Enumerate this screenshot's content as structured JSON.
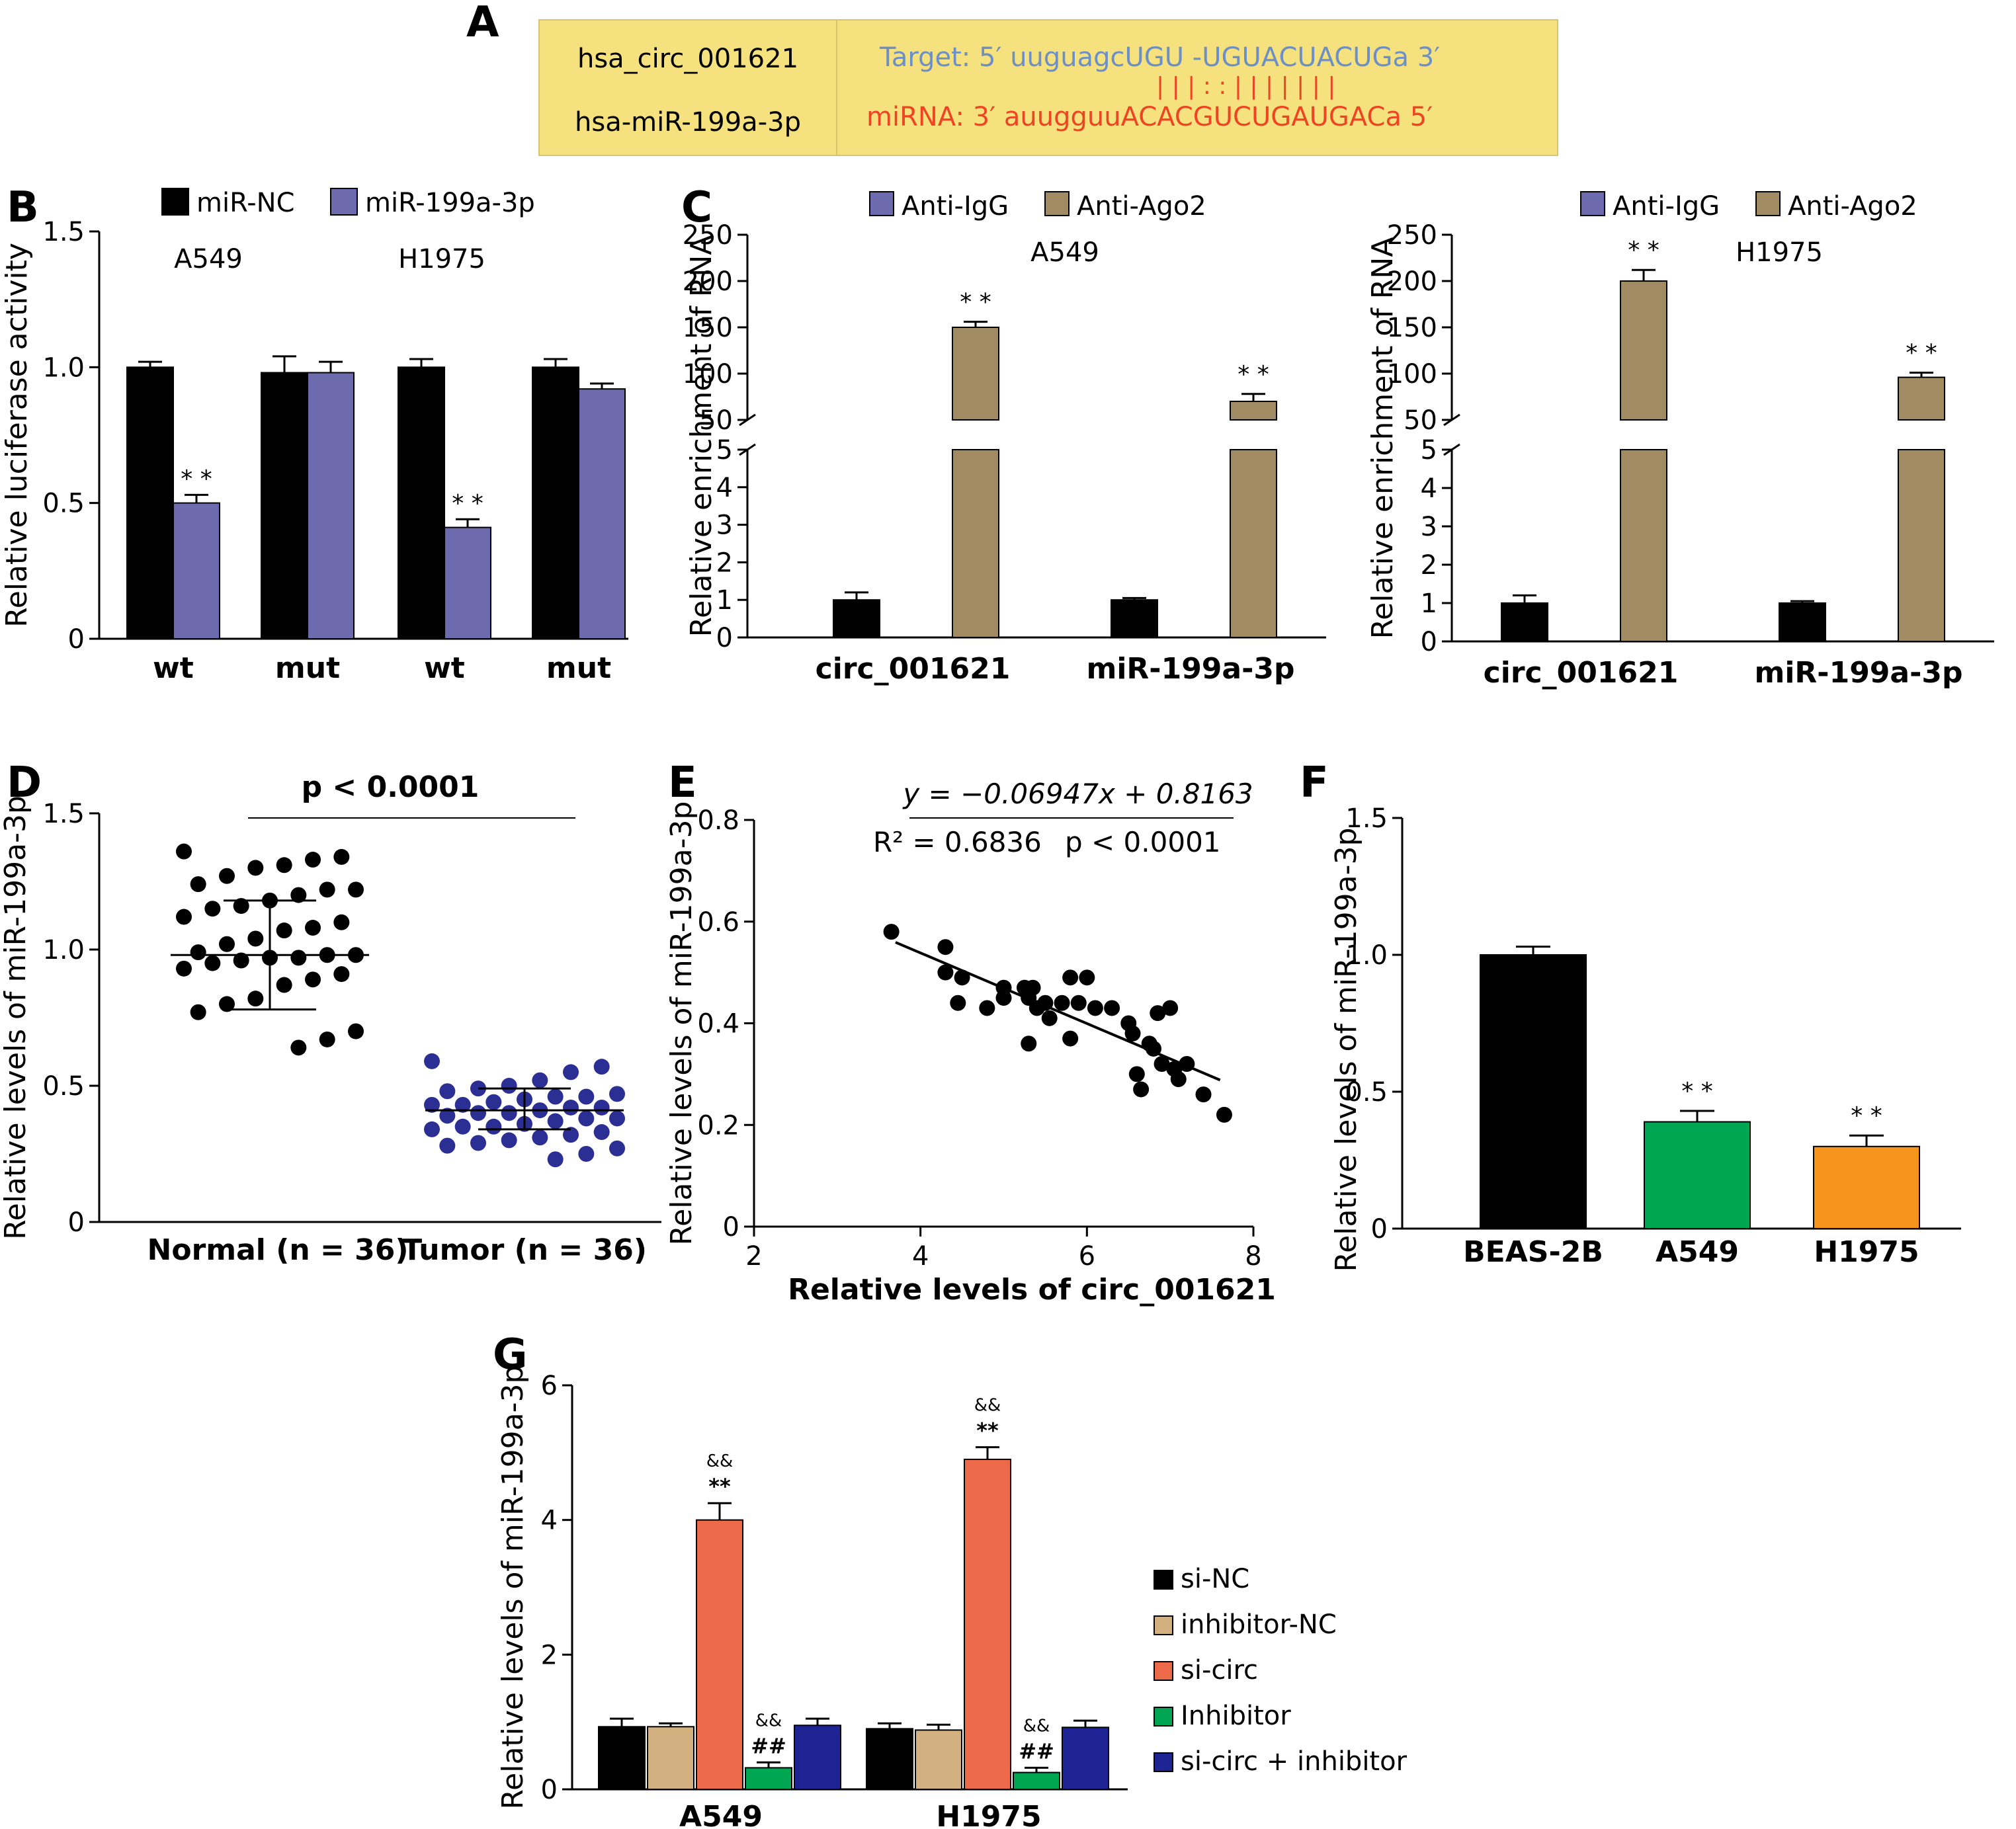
{
  "colors": {
    "black": "#000000",
    "purple": "#6e6aae",
    "tan": "#a08b63",
    "navy": "#2b2e92",
    "green": "#00a651",
    "orange": "#f7941d",
    "red_orange": "#ec694a",
    "beige": "#d2b07f",
    "dark_blue": "#1f2494",
    "yellow_box": "#f5e17e",
    "target_blue": "#6c8fc7",
    "mirna_red": "#ee4423"
  },
  "panelA": {
    "letter": "A",
    "left_box": {
      "line1": "hsa_circ_001621",
      "line2": "hsa-miR-199a-3p"
    },
    "target": {
      "prefix": "Target: 5′",
      "seq": "uuguagcUGU -UGUACUACUGa",
      "suffix": "3′"
    },
    "pairing": "| | |     :  :     | | | | | | |",
    "mirna": {
      "prefix": "miRNA: 3′",
      "seq": "auugguuACACGUCUGAUGACa",
      "suffix": "5′"
    }
  },
  "panelB": {
    "letter": "B",
    "chart_data": {
      "type": "bar",
      "title": "",
      "ylabel": "Relative luciferase activity",
      "ylim": [
        0,
        1.5
      ],
      "yticks": [
        "0",
        "0.5",
        "1.0",
        "1.5"
      ],
      "categories": [
        "wt",
        "mut",
        "wt",
        "mut"
      ],
      "group_labels": [
        "A549",
        "H1975"
      ],
      "series": [
        {
          "name": "miR-NC",
          "color": "#000000",
          "values": [
            1.0,
            0.98,
            1.0,
            1.0
          ],
          "errors": [
            0.02,
            0.06,
            0.03,
            0.03
          ]
        },
        {
          "name": "miR-199a-3p",
          "color": "#6e6aae",
          "values": [
            0.5,
            0.98,
            0.41,
            0.92
          ],
          "errors": [
            0.03,
            0.04,
            0.03,
            0.02
          ]
        }
      ],
      "annotations": [
        "* *",
        "* *"
      ]
    }
  },
  "panelC": {
    "letter": "C",
    "ylabel": "Relative enrichment of RNA",
    "legend": [
      "Anti-IgG",
      "Anti-Ago2"
    ],
    "chart_data": [
      {
        "type": "bar",
        "title": "A549",
        "categories": [
          "circ_001621",
          "miR-199a-3p"
        ],
        "yticks_low": [
          "0",
          "1",
          "2",
          "3",
          "4",
          "5"
        ],
        "yticks_high": [
          "50",
          "100",
          "150",
          "200",
          "250"
        ],
        "series": [
          {
            "name": "Anti-IgG",
            "values": [
              1.0,
              1.0
            ],
            "errors": [
              0.2,
              0.05
            ]
          },
          {
            "name": "Anti-Ago2",
            "values": [
              150,
              70
            ],
            "errors": [
              6,
              8
            ]
          }
        ],
        "annotations": [
          "* *",
          "* *"
        ]
      },
      {
        "type": "bar",
        "title": "H1975",
        "categories": [
          "circ_001621",
          "miR-199a-3p"
        ],
        "yticks_low": [
          "0",
          "1",
          "2",
          "3",
          "4",
          "5"
        ],
        "yticks_high": [
          "50",
          "100",
          "150",
          "200",
          "250"
        ],
        "series": [
          {
            "name": "Anti-IgG",
            "values": [
              1.0,
              1.0
            ],
            "errors": [
              0.2,
              0.05
            ]
          },
          {
            "name": "Anti-Ago2",
            "values": [
              200,
              96
            ],
            "errors": [
              12,
              5
            ]
          }
        ],
        "annotations": [
          "* *",
          "* *"
        ]
      }
    ]
  },
  "panelD": {
    "letter": "D",
    "pvalue_label": "p < 0.0001",
    "chart_data": {
      "type": "scatter",
      "ylabel": "Relative levels of miR-199a-3p",
      "ylim": [
        0,
        1.5
      ],
      "yticks": [
        "0",
        "0.5",
        "1.0",
        "1.5"
      ],
      "categories": [
        "Normal (n = 36)",
        "Tumor (n = 36)"
      ],
      "normal": {
        "mean": 0.98,
        "sd_upper": 1.18,
        "sd_lower": 0.78,
        "values": [
          1.36,
          1.34,
          1.33,
          1.31,
          1.3,
          1.27,
          1.24,
          1.22,
          1.22,
          1.2,
          1.18,
          1.16,
          1.15,
          1.12,
          1.1,
          1.08,
          1.07,
          1.04,
          1.02,
          0.99,
          0.98,
          0.98,
          0.97,
          0.97,
          0.96,
          0.95,
          0.93,
          0.91,
          0.89,
          0.87,
          0.82,
          0.8,
          0.77,
          0.7,
          0.67,
          0.64
        ]
      },
      "tumor": {
        "mean": 0.41,
        "sd_upper": 0.49,
        "sd_lower": 0.34,
        "values": [
          0.59,
          0.57,
          0.55,
          0.52,
          0.5,
          0.49,
          0.48,
          0.47,
          0.46,
          0.46,
          0.45,
          0.44,
          0.43,
          0.43,
          0.42,
          0.42,
          0.41,
          0.4,
          0.4,
          0.39,
          0.38,
          0.38,
          0.37,
          0.36,
          0.35,
          0.35,
          0.34,
          0.33,
          0.32,
          0.31,
          0.3,
          0.29,
          0.28,
          0.27,
          0.25,
          0.23
        ]
      }
    }
  },
  "panelE": {
    "letter": "E",
    "equation": "y = −0.06947x + 0.8163",
    "r2_label": "R² = 0.6836",
    "pvalue_label": "p < 0.0001",
    "chart_data": {
      "type": "scatter",
      "xlabel": "Relative levels of circ_001621",
      "ylabel": "Relative levels of miR-199a-3p",
      "xlim": [
        2,
        8
      ],
      "ylim": [
        0,
        0.8
      ],
      "xticks": [
        "2",
        "4",
        "6",
        "8"
      ],
      "yticks": [
        "0",
        "0.2",
        "0.4",
        "0.6",
        "0.8"
      ],
      "fit": {
        "slope": -0.06947,
        "intercept": 0.8163,
        "x_range": [
          3.7,
          7.6
        ]
      },
      "points": [
        [
          3.65,
          0.58
        ],
        [
          4.3,
          0.55
        ],
        [
          4.3,
          0.5
        ],
        [
          4.5,
          0.49
        ],
        [
          4.45,
          0.44
        ],
        [
          4.8,
          0.43
        ],
        [
          5.0,
          0.47
        ],
        [
          5.0,
          0.45
        ],
        [
          5.25,
          0.47
        ],
        [
          5.35,
          0.47
        ],
        [
          5.3,
          0.45
        ],
        [
          5.5,
          0.44
        ],
        [
          5.4,
          0.43
        ],
        [
          5.7,
          0.44
        ],
        [
          5.9,
          0.44
        ],
        [
          5.3,
          0.36
        ],
        [
          5.8,
          0.37
        ],
        [
          5.8,
          0.49
        ],
        [
          6.0,
          0.49
        ],
        [
          6.1,
          0.43
        ],
        [
          6.3,
          0.43
        ],
        [
          6.5,
          0.4
        ],
        [
          6.55,
          0.38
        ],
        [
          6.6,
          0.3
        ],
        [
          6.65,
          0.27
        ],
        [
          6.8,
          0.35
        ],
        [
          6.85,
          0.42
        ],
        [
          6.9,
          0.32
        ],
        [
          7.0,
          0.43
        ],
        [
          7.05,
          0.31
        ],
        [
          7.1,
          0.29
        ],
        [
          7.2,
          0.32
        ],
        [
          7.4,
          0.26
        ],
        [
          7.65,
          0.22
        ],
        [
          6.75,
          0.36
        ],
        [
          5.55,
          0.41
        ]
      ]
    }
  },
  "panelF": {
    "letter": "F",
    "chart_data": {
      "type": "bar",
      "ylabel": "Relative levels of miR-199a-3p",
      "ylim": [
        0,
        1.5
      ],
      "yticks": [
        "0",
        "0.5",
        "1.0",
        "1.5"
      ],
      "categories": [
        "BEAS-2B",
        "A549",
        "H1975"
      ],
      "values": [
        1.0,
        0.39,
        0.3
      ],
      "errors": [
        0.03,
        0.04,
        0.04
      ],
      "colors": [
        "#000000",
        "#00a651",
        "#f7941d"
      ],
      "annotations": [
        "",
        "* *",
        "* *"
      ]
    }
  },
  "panelG": {
    "letter": "G",
    "chart_data": {
      "type": "bar",
      "ylabel": "Relative levels of miR-199a-3p",
      "ylim": [
        0,
        6
      ],
      "yticks": [
        "0",
        "2",
        "4",
        "6"
      ],
      "categories": [
        "A549",
        "H1975"
      ],
      "series": [
        {
          "name": "si-NC",
          "color": "#000000",
          "values": [
            0.93,
            0.9
          ],
          "errors": [
            0.12,
            0.08
          ]
        },
        {
          "name": "inhibitor-NC",
          "color": "#d2b07f",
          "values": [
            0.93,
            0.88
          ],
          "errors": [
            0.05,
            0.08
          ]
        },
        {
          "name": "si-circ",
          "color": "#ec694a",
          "values": [
            4.0,
            4.9
          ],
          "errors": [
            0.25,
            0.18
          ]
        },
        {
          "name": "Inhibitor",
          "color": "#00a651",
          "values": [
            0.32,
            0.25
          ],
          "errors": [
            0.08,
            0.07
          ]
        },
        {
          "name": "si-circ + inhibitor",
          "color": "#1f2494",
          "values": [
            0.95,
            0.92
          ],
          "errors": [
            0.1,
            0.1
          ]
        }
      ],
      "annotations": {
        "si-circ": [
          "&&",
          "**"
        ],
        "Inhibitor": [
          "&&",
          "##"
        ]
      }
    }
  }
}
